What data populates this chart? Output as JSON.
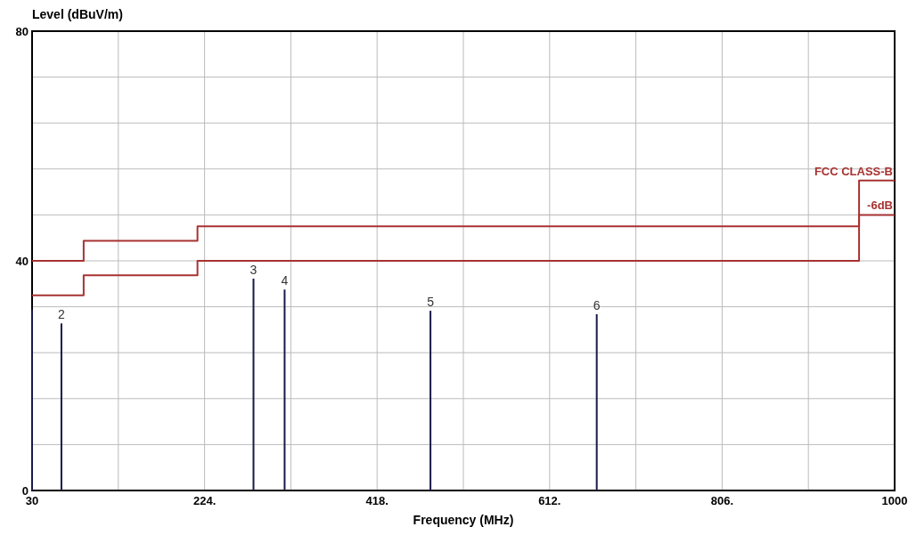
{
  "chart_data": {
    "type": "bar",
    "xlabel": "Frequency (MHz)",
    "ylabel": "Level (dBuV/m)",
    "xlim": [
      30,
      1000
    ],
    "ylim": [
      0,
      80
    ],
    "xticks": [
      30,
      {
        "value": 127,
        "label": null
      },
      {
        "value": 224,
        "label": "224."
      },
      {
        "value": 321,
        "label": null
      },
      {
        "value": 418,
        "label": "418."
      },
      {
        "value": 515,
        "label": null
      },
      {
        "value": 612,
        "label": "612."
      },
      {
        "value": 709,
        "label": null
      },
      {
        "value": 806,
        "label": "806."
      },
      {
        "value": 903,
        "label": null
      },
      1000
    ],
    "yticks": [
      0,
      {
        "value": 8,
        "label": null
      },
      {
        "value": 16,
        "label": null
      },
      {
        "value": 24,
        "label": null
      },
      {
        "value": 32,
        "label": null
      },
      40,
      {
        "value": 48,
        "label": null
      },
      {
        "value": 56,
        "label": null
      },
      {
        "value": 64,
        "label": null
      },
      {
        "value": 72,
        "label": null
      },
      80
    ],
    "grid": true,
    "annotations": [
      {
        "text": "2",
        "x": 63,
        "y": 29.1
      },
      {
        "text": "3",
        "x": 279,
        "y": 36.9
      },
      {
        "text": "4",
        "x": 314,
        "y": 35.0
      },
      {
        "text": "5",
        "x": 478,
        "y": 31.3
      },
      {
        "text": "6",
        "x": 665,
        "y": 30.7
      }
    ],
    "series": [
      {
        "color": "#1a1a4a",
        "x": [
          30,
          63,
          279,
          314,
          478,
          665
        ],
        "values": [
          31.5,
          29.1,
          36.9,
          35.0,
          31.3,
          30.7
        ]
      },
      {
        "type": "step",
        "name": "FCC CLASS-B",
        "color": "#a83232",
        "x": [
          30,
          88,
          216,
          960,
          1000
        ],
        "values": [
          40,
          43.5,
          46,
          54,
          54
        ]
      },
      {
        "type": "step",
        "name": "-6dB",
        "color": "#a83232",
        "x": [
          30,
          88,
          216,
          960,
          1000
        ],
        "values": [
          34,
          37.5,
          40,
          48,
          48
        ]
      }
    ]
  }
}
